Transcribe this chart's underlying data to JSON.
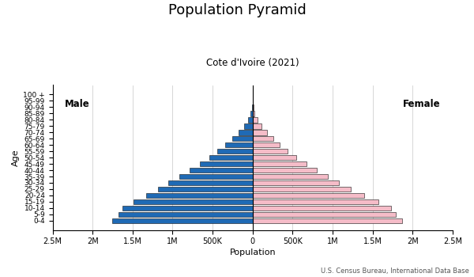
{
  "title": "Population Pyramid",
  "subtitle": "Cote d'Ivoire (2021)",
  "xlabel": "Population",
  "ylabel": "Age",
  "source": "U.S. Census Bureau, International Data Base",
  "age_groups": [
    "0-4",
    "5-9",
    "10-14",
    "15-19",
    "20-24",
    "25-29",
    "30-34",
    "35-39",
    "40-44",
    "45-49",
    "50-54",
    "55-59",
    "60-64",
    "65-69",
    "70-74",
    "75-79",
    "80-84",
    "85-89",
    "90-94",
    "95-99",
    "100 +"
  ],
  "male": [
    1750000,
    1680000,
    1630000,
    1490000,
    1330000,
    1180000,
    1050000,
    920000,
    790000,
    660000,
    545000,
    440000,
    340000,
    255000,
    180000,
    110000,
    58000,
    24000,
    7500,
    2000,
    400
  ],
  "female": [
    1870000,
    1790000,
    1730000,
    1570000,
    1390000,
    1230000,
    1080000,
    940000,
    800000,
    670000,
    550000,
    440000,
    340000,
    255000,
    180000,
    115000,
    62000,
    27000,
    9000,
    2500,
    500
  ],
  "male_color": "#1f6ab5",
  "female_color": "#f5bcc8",
  "bar_edge_color": "#111111",
  "bar_edge_width": 0.4,
  "xlim": 2500000,
  "background_color": "#ffffff",
  "grid_color": "#d0d0d0",
  "male_label": "Male",
  "female_label": "Female",
  "title_fontsize": 13,
  "subtitle_fontsize": 8.5,
  "ylabel_fontsize": 8,
  "xlabel_fontsize": 8,
  "ytick_fontsize": 6.5,
  "xtick_fontsize": 7
}
